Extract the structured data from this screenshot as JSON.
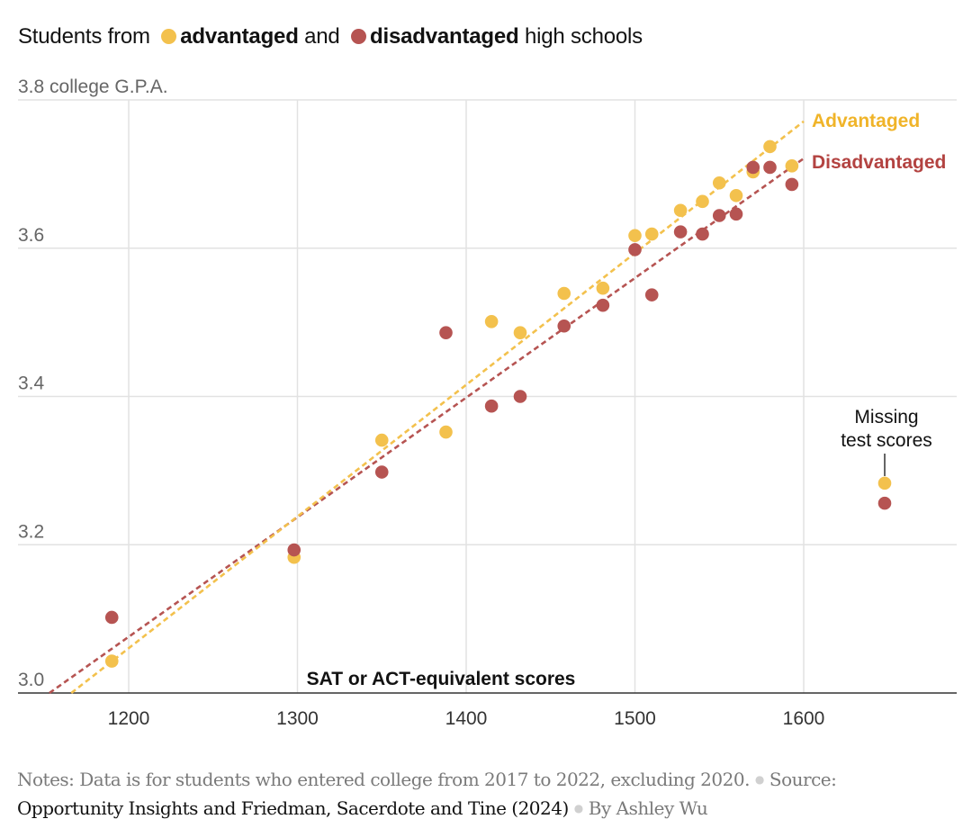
{
  "legend": {
    "prefix": "Students from",
    "advantaged_label": "advantaged",
    "and": "and",
    "disadvantaged_label": "disadvantaged",
    "suffix": "high schools"
  },
  "colors": {
    "advantaged": "#f3c14d",
    "disadvantaged": "#b65452",
    "advantaged_text": "#f0b429",
    "disadvantaged_text": "#b34341",
    "grid": "#e2e2e2",
    "axis": "#333333"
  },
  "chart_data": {
    "type": "scatter",
    "title": "Students from advantaged and disadvantaged high schools",
    "xlabel": "SAT or ACT-equivalent scores",
    "ylabel": "college G.P.A.",
    "xlim": [
      1150,
      1690
    ],
    "ylim": [
      3.0,
      3.8
    ],
    "x_ticks": [
      1200,
      1300,
      1400,
      1500,
      1600
    ],
    "y_ticks": [
      3.0,
      3.2,
      3.4,
      3.6,
      3.8
    ],
    "y_tick_labels": [
      "3.0",
      "3.2",
      "3.4",
      "3.6",
      "3.8 college G.P.A."
    ],
    "series": [
      {
        "name": "Advantaged",
        "color_key": "advantaged",
        "points": [
          [
            1190,
            3.043
          ],
          [
            1298,
            3.183
          ],
          [
            1350,
            3.341
          ],
          [
            1388,
            3.352
          ],
          [
            1415,
            3.501
          ],
          [
            1432,
            3.486
          ],
          [
            1458,
            3.539
          ],
          [
            1481,
            3.546
          ],
          [
            1500,
            3.617
          ],
          [
            1510,
            3.619
          ],
          [
            1527,
            3.651
          ],
          [
            1540,
            3.663
          ],
          [
            1550,
            3.688
          ],
          [
            1560,
            3.671
          ],
          [
            1570,
            3.703
          ],
          [
            1580,
            3.737
          ],
          [
            1593,
            3.711
          ]
        ],
        "trend": {
          "x1": 1166,
          "y1": 3.0,
          "x2": 1600,
          "y2": 3.771
        },
        "trend_label": "Advantaged"
      },
      {
        "name": "Disadvantaged",
        "color_key": "disadvantaged",
        "points": [
          [
            1190,
            3.102
          ],
          [
            1298,
            3.193
          ],
          [
            1350,
            3.298
          ],
          [
            1388,
            3.486
          ],
          [
            1415,
            3.387
          ],
          [
            1432,
            3.4
          ],
          [
            1458,
            3.495
          ],
          [
            1481,
            3.523
          ],
          [
            1500,
            3.598
          ],
          [
            1510,
            3.537
          ],
          [
            1527,
            3.622
          ],
          [
            1540,
            3.619
          ],
          [
            1550,
            3.644
          ],
          [
            1560,
            3.646
          ],
          [
            1570,
            3.709
          ],
          [
            1580,
            3.709
          ],
          [
            1593,
            3.686
          ]
        ],
        "trend": {
          "x1": 1153,
          "y1": 3.0,
          "x2": 1600,
          "y2": 3.721
        },
        "trend_label": "Disadvantaged"
      }
    ],
    "missing_scores": {
      "label_line1": "Missing",
      "label_line2": "test scores",
      "x": 1648,
      "advantaged_gpa": 3.283,
      "disadvantaged_gpa": 3.256
    }
  },
  "footer": {
    "notes": "Notes: Data is for students who entered college from 2017 to 2022, excluding 2020.",
    "source_label": "Source:",
    "source": "Opportunity Insights and Friedman, Sacerdote and Tine (2024)",
    "byline": "By Ashley Wu"
  }
}
